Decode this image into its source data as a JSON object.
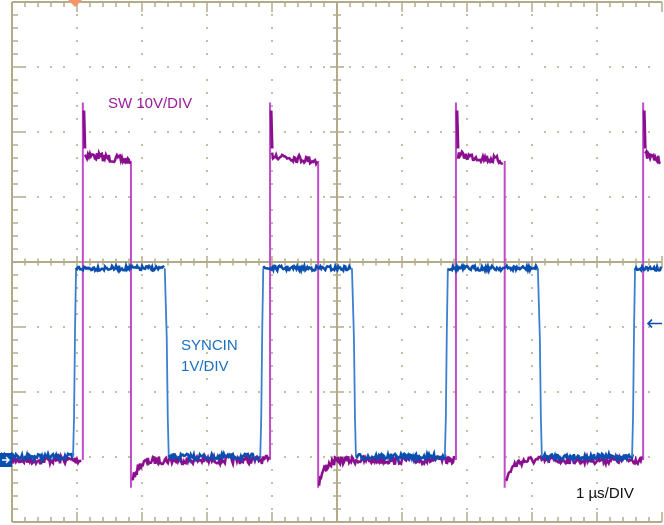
{
  "chart_data": {
    "type": "line",
    "title": "",
    "x_unit": "µs",
    "xlim": [
      0,
      10
    ],
    "ylim_divisions": [
      -4,
      4
    ],
    "grid": true,
    "timebase_label": "1 µs/DIV",
    "trigger_position_us": 0.97,
    "trigger_level_v": 2.1,
    "series": [
      {
        "name": "SW",
        "scale_label": "SW 10V/DIV",
        "volts_per_div": 10,
        "color": "#8a0f8f",
        "edge_color": "#c04cc8",
        "low_v": 0,
        "high_start_v": 47,
        "high_end_v": 46,
        "spike_v": 55,
        "undershoot_v": -3.5,
        "rising_edges_us": [
          1.09,
          3.97,
          6.83,
          9.71
        ],
        "falling_edges_us": [
          1.83,
          4.71,
          7.58
        ]
      },
      {
        "name": "SYNCIN",
        "scale_label_lines": [
          "SYNCIN",
          "1V/DIV"
        ],
        "volts_per_div": 1,
        "color": "#0a4fb0",
        "edge_color": "#3a7fd0",
        "low_v": 0.05,
        "high_v": 2.95,
        "rising_edges_us": [
          0.97,
          3.85,
          6.69,
          9.57
        ],
        "falling_edges_us": [
          2.35,
          5.23,
          8.09
        ]
      }
    ],
    "grid_color": "#b3aa8a",
    "trigger_marker_color": "#f4956a",
    "ground_marker_color": "#0a4fb0"
  }
}
